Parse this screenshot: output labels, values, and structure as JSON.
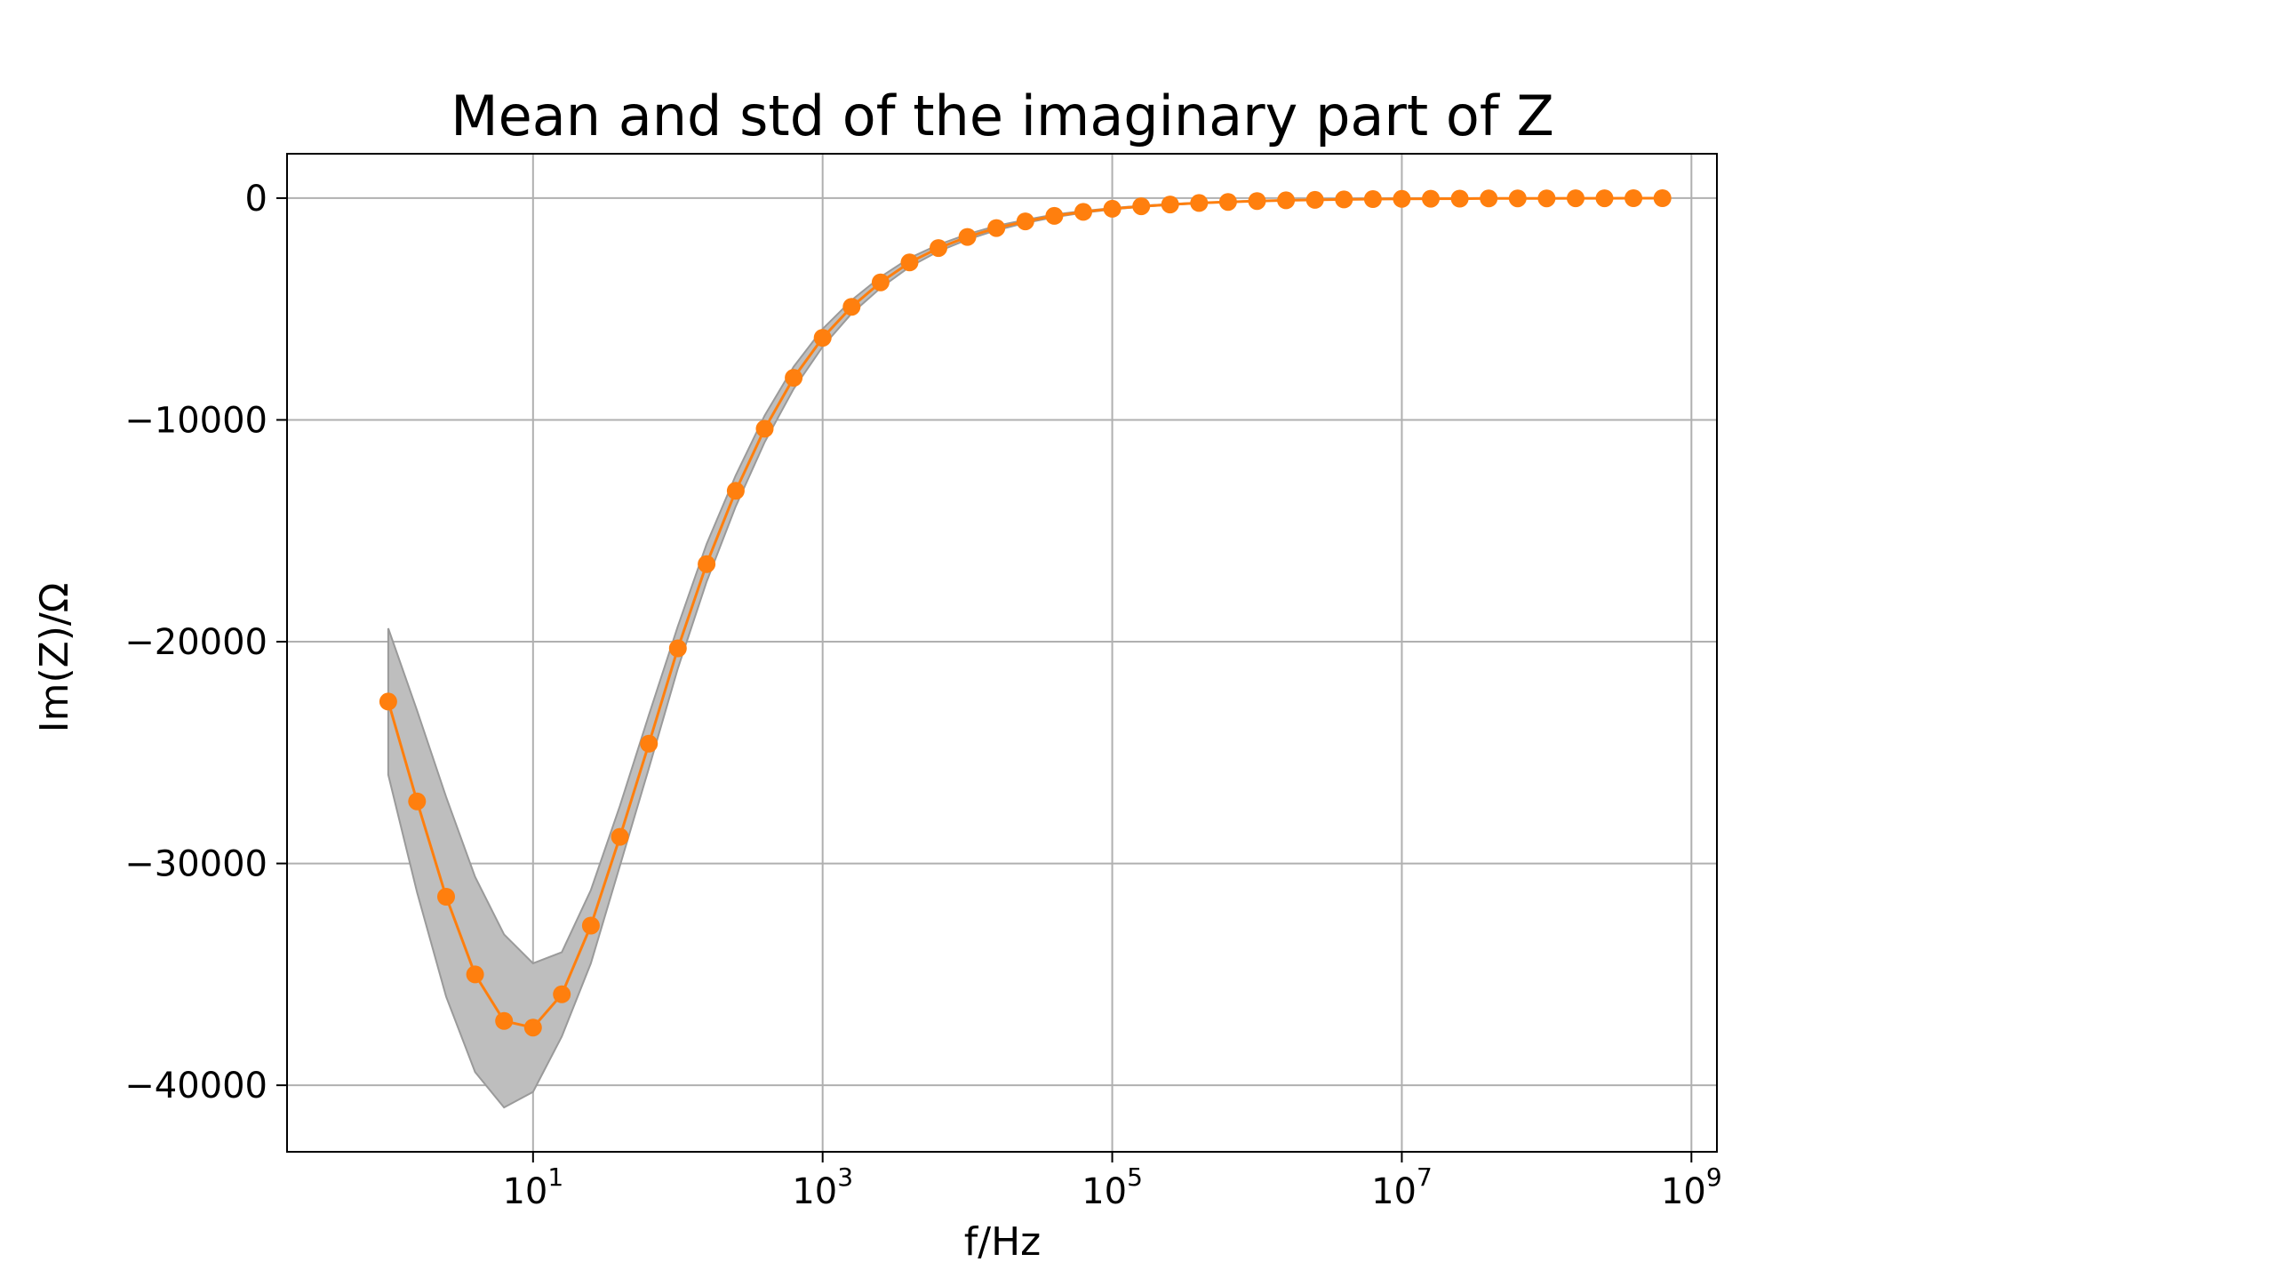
{
  "chart_data": {
    "type": "line",
    "title": "Mean and std of the imaginary part of Z",
    "xlabel": "f/Hz",
    "ylabel": "Im(Z)/Ω",
    "xscale": "log",
    "xlim": [
      0.2,
      1500000000
    ],
    "ylim": [
      -43000,
      2000
    ],
    "grid": true,
    "colors": {
      "line": "#ff7f0e",
      "band": "#bebebe",
      "band_edge": "#9a9a9a",
      "grid": "#b0b0b0"
    },
    "x_ticks": [
      {
        "base": "10",
        "exp": "1",
        "value": 10
      },
      {
        "base": "10",
        "exp": "3",
        "value": 1000
      },
      {
        "base": "10",
        "exp": "5",
        "value": 100000
      },
      {
        "base": "10",
        "exp": "7",
        "value": 10000000
      },
      {
        "base": "10",
        "exp": "9",
        "value": 1000000000
      }
    ],
    "y_ticks": [
      {
        "label": "0",
        "value": 0
      },
      {
        "label": "−10000",
        "value": -10000
      },
      {
        "label": "−20000",
        "value": -20000
      },
      {
        "label": "−30000",
        "value": -30000
      },
      {
        "label": "−40000",
        "value": -40000
      }
    ],
    "series": [
      {
        "type": "line",
        "x": [
          1.0,
          1.58,
          2.51,
          3.98,
          6.31,
          10.0,
          15.8,
          25.1,
          39.8,
          63.1,
          100.0,
          158,
          251,
          398,
          631,
          1000,
          1585,
          2512,
          3981,
          6310,
          10000,
          15849,
          25119,
          39811,
          63096,
          100000,
          158490,
          251190,
          398110,
          630960,
          1000000,
          1584900,
          2511900,
          3981100,
          6309600,
          10000000,
          15849000,
          25119000,
          39811000,
          63096000,
          100000000,
          158490000,
          251190000,
          398110000,
          630960000
        ],
        "y": [
          -22700,
          -27200,
          -31500,
          -35000,
          -37100,
          -37400,
          -35900,
          -32800,
          -28800,
          -24600,
          -20300,
          -16500,
          -13200,
          -10400,
          -8100,
          -6300,
          -4900,
          -3800,
          -2900,
          -2250,
          -1750,
          -1350,
          -1050,
          -800,
          -620,
          -480,
          -370,
          -290,
          -220,
          -170,
          -130,
          -100,
          -80,
          -60,
          -45,
          -35,
          -28,
          -22,
          -17,
          -13,
          -10,
          -8,
          -6,
          -5,
          -4
        ],
        "y_lower": [
          -26000,
          -31300,
          -36000,
          -39400,
          -41000,
          -40300,
          -37800,
          -34500,
          -30100,
          -25700,
          -21200,
          -17300,
          -13900,
          -11000,
          -8600,
          -6700,
          -5200,
          -4050,
          -3100,
          -2400,
          -1870,
          -1450,
          -1120,
          -860,
          -660,
          -510,
          -395,
          -310,
          -235,
          -180,
          -140,
          -107,
          -85,
          -64,
          -48,
          -37,
          -30,
          -23,
          -18,
          -14,
          -11,
          -9,
          -7,
          -5,
          -4
        ],
        "y_upper": [
          -19400,
          -23100,
          -27000,
          -30600,
          -33200,
          -34500,
          -34000,
          -31200,
          -27400,
          -23300,
          -19300,
          -15600,
          -12500,
          -9800,
          -7600,
          -5900,
          -4600,
          -3550,
          -2700,
          -2100,
          -1630,
          -1250,
          -980,
          -740,
          -580,
          -450,
          -345,
          -270,
          -205,
          -160,
          -120,
          -93,
          -75,
          -56,
          -42,
          -33,
          -26,
          -21,
          -16,
          -12,
          -9,
          -7,
          -5,
          -4,
          -3
        ]
      }
    ]
  }
}
